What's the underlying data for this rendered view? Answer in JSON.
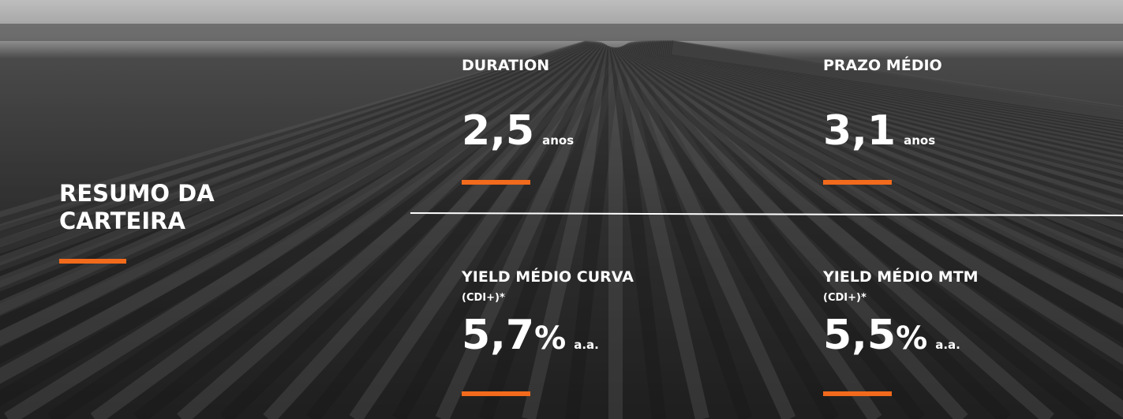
{
  "title_lines": [
    "RESUMO DA",
    "CARTEIRA"
  ],
  "metrics": [
    {
      "label": "DURATION",
      "value": "2,5",
      "unit": "anos"
    },
    {
      "label": "PRAZO MÉDIO",
      "value": "3,1",
      "unit": "anos"
    },
    {
      "label": "YIELD MÉDIO CURVA",
      "sublabel": "(CDI+)*",
      "value": "5,7",
      "suffix": "%",
      "unit": "a.a."
    },
    {
      "label": "YIELD MÉDIO MTM",
      "sublabel": "(CDI+)*",
      "value": "5,5",
      "suffix": "%",
      "unit": "a.a."
    }
  ]
}
